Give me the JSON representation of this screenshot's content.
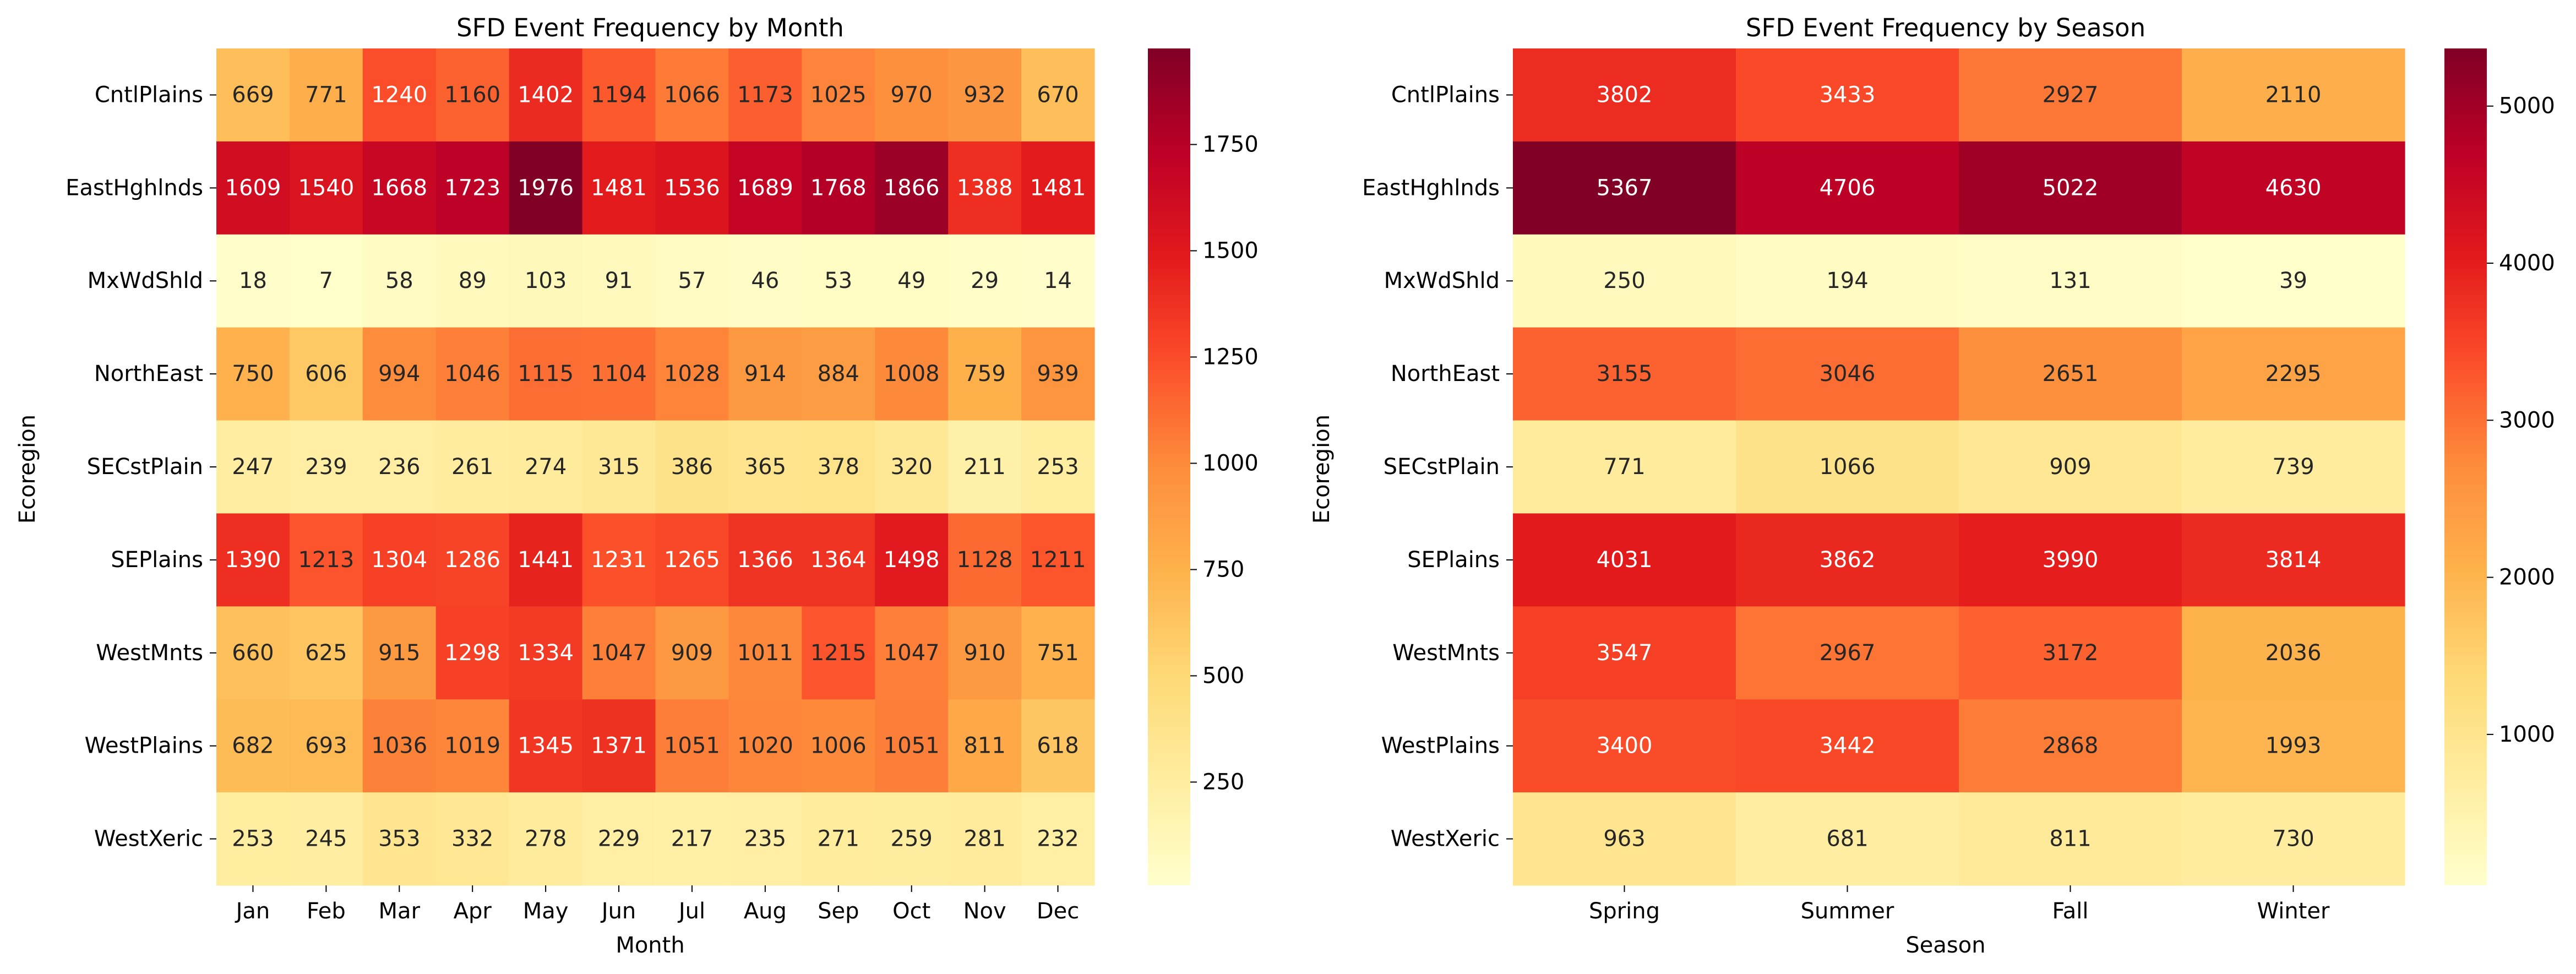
{
  "chart_data": [
    {
      "type": "heatmap",
      "title": "SFD Event Frequency by Month",
      "xlabel": "Month",
      "ylabel": "Ecoregion",
      "x": [
        "Jan",
        "Feb",
        "Mar",
        "Apr",
        "May",
        "Jun",
        "Jul",
        "Aug",
        "Sep",
        "Oct",
        "Nov",
        "Dec"
      ],
      "y": [
        "CntlPlains",
        "EastHghlnds",
        "MxWdShld",
        "NorthEast",
        "SECstPlain",
        "SEPlains",
        "WestMnts",
        "WestPlains",
        "WestXeric"
      ],
      "values": [
        [
          669,
          771,
          1240,
          1160,
          1402,
          1194,
          1066,
          1173,
          1025,
          970,
          932,
          670
        ],
        [
          1609,
          1540,
          1668,
          1723,
          1976,
          1481,
          1536,
          1689,
          1768,
          1866,
          1388,
          1481
        ],
        [
          18,
          7,
          58,
          89,
          103,
          91,
          57,
          46,
          53,
          49,
          29,
          14
        ],
        [
          750,
          606,
          994,
          1046,
          1115,
          1104,
          1028,
          914,
          884,
          1008,
          759,
          939
        ],
        [
          247,
          239,
          236,
          261,
          274,
          315,
          386,
          365,
          378,
          320,
          211,
          253
        ],
        [
          1390,
          1213,
          1304,
          1286,
          1441,
          1231,
          1265,
          1366,
          1364,
          1498,
          1128,
          1211
        ],
        [
          660,
          625,
          915,
          1298,
          1334,
          1047,
          909,
          1011,
          1215,
          1047,
          910,
          751
        ],
        [
          682,
          693,
          1036,
          1019,
          1345,
          1371,
          1051,
          1020,
          1006,
          1051,
          811,
          618
        ],
        [
          253,
          245,
          353,
          332,
          278,
          229,
          217,
          235,
          271,
          259,
          281,
          232
        ]
      ],
      "colormap": "YlOrRd",
      "zlim": [
        7,
        1976
      ],
      "colorbar_ticks": [
        "250",
        "500",
        "750",
        "1000",
        "1250",
        "1500",
        "1750"
      ]
    },
    {
      "type": "heatmap",
      "title": "SFD Event Frequency by Season",
      "xlabel": "Season",
      "ylabel": "Ecoregion",
      "x": [
        "Spring",
        "Summer",
        "Fall",
        "Winter"
      ],
      "y": [
        "CntlPlains",
        "EastHghlnds",
        "MxWdShld",
        "NorthEast",
        "SECstPlain",
        "SEPlains",
        "WestMnts",
        "WestPlains",
        "WestXeric"
      ],
      "values": [
        [
          3802,
          3433,
          2927,
          2110
        ],
        [
          5367,
          4706,
          5022,
          4630
        ],
        [
          250,
          194,
          131,
          39
        ],
        [
          3155,
          3046,
          2651,
          2295
        ],
        [
          771,
          1066,
          909,
          739
        ],
        [
          4031,
          3862,
          3990,
          3814
        ],
        [
          3547,
          2967,
          3172,
          2036
        ],
        [
          3400,
          3442,
          2868,
          1993
        ],
        [
          963,
          681,
          811,
          730
        ]
      ],
      "colormap": "YlOrRd",
      "zlim": [
        39,
        5367
      ],
      "colorbar_ticks": [
        "1000",
        "2000",
        "3000",
        "4000",
        "5000"
      ]
    }
  ]
}
